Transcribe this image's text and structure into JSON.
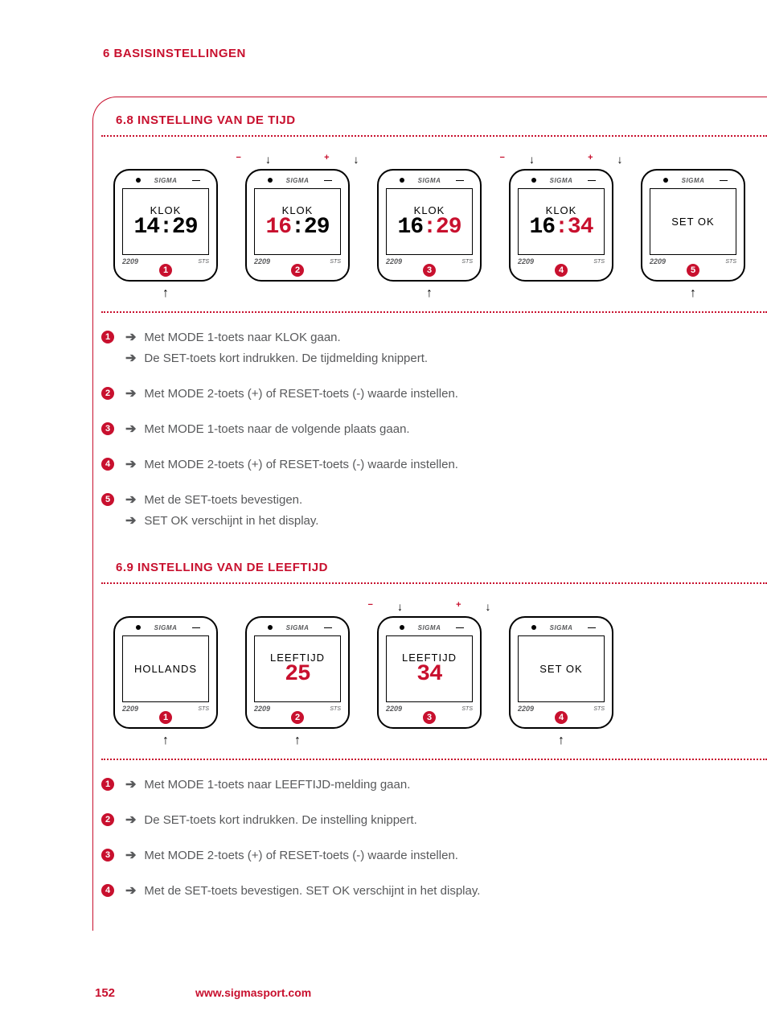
{
  "header": {
    "title": "6 BASISINSTELLINGEN"
  },
  "section_68": {
    "title": "6.8 INSTELLING VAN DE TIJD",
    "devices": [
      {
        "badge": "1",
        "top_indicators": false,
        "bottom_arrow": true,
        "brand": "SIGMA",
        "model": "2209",
        "sts": "STS",
        "screen_label": "KLOK",
        "segments": [
          {
            "text": "14",
            "color": "black"
          },
          {
            "text": ":",
            "color": "black"
          },
          {
            "text": "29",
            "color": "black"
          }
        ],
        "blink_hours": true
      },
      {
        "badge": "2",
        "top_indicators": true,
        "bottom_arrow": false,
        "brand": "SIGMA",
        "model": "2209",
        "sts": "STS",
        "screen_label": "KLOK",
        "segments": [
          {
            "text": "16",
            "color": "red"
          },
          {
            "text": ":",
            "color": "black"
          },
          {
            "text": "29",
            "color": "black"
          }
        ]
      },
      {
        "badge": "3",
        "top_indicators": false,
        "bottom_arrow": true,
        "brand": "SIGMA",
        "model": "2209",
        "sts": "STS",
        "screen_label": "KLOK",
        "segments": [
          {
            "text": "16",
            "color": "black"
          },
          {
            "text": ":",
            "color": "red"
          },
          {
            "text": "29",
            "color": "red"
          }
        ]
      },
      {
        "badge": "4",
        "top_indicators": true,
        "bottom_arrow": false,
        "brand": "SIGMA",
        "model": "2209",
        "sts": "STS",
        "screen_label": "KLOK",
        "segments": [
          {
            "text": "16",
            "color": "black"
          },
          {
            "text": ":",
            "color": "red"
          },
          {
            "text": "34",
            "color": "red"
          }
        ]
      },
      {
        "badge": "5",
        "top_indicators": false,
        "bottom_arrow": true,
        "brand": "SIGMA",
        "model": "2209",
        "sts": "STS",
        "screen_label": "SET OK",
        "segments": []
      }
    ],
    "steps": [
      {
        "n": "1",
        "lines": [
          "Met MODE 1-toets naar KLOK gaan.",
          "De SET-toets kort indrukken. De tijdmelding knippert."
        ]
      },
      {
        "n": "2",
        "lines": [
          "Met MODE 2-toets (+) of RESET-toets (-) waarde instellen."
        ]
      },
      {
        "n": "3",
        "lines": [
          "Met MODE 1-toets naar de volgende plaats gaan."
        ]
      },
      {
        "n": "4",
        "lines": [
          "Met MODE 2-toets (+) of RESET-toets (-) waarde instellen."
        ]
      },
      {
        "n": "5",
        "lines": [
          "Met de SET-toets bevestigen.",
          "SET OK verschijnt in het display."
        ]
      }
    ]
  },
  "section_69": {
    "title": "6.9 INSTELLING VAN DE LEEFTIJD",
    "devices": [
      {
        "badge": "1",
        "top_indicators": false,
        "bottom_arrow": true,
        "brand": "SIGMA",
        "model": "2209",
        "sts": "STS",
        "screen_label": "HOLLANDS",
        "segments": []
      },
      {
        "badge": "2",
        "top_indicators": false,
        "bottom_arrow": true,
        "brand": "SIGMA",
        "model": "2209",
        "sts": "STS",
        "screen_label": "LEEFTIJD",
        "segments": [
          {
            "text": "25",
            "color": "red"
          }
        ],
        "blink_value": true
      },
      {
        "badge": "3",
        "top_indicators": true,
        "bottom_arrow": false,
        "brand": "SIGMA",
        "model": "2209",
        "sts": "STS",
        "screen_label": "LEEFTIJD",
        "segments": [
          {
            "text": "34",
            "color": "red"
          }
        ]
      },
      {
        "badge": "4",
        "top_indicators": false,
        "bottom_arrow": true,
        "brand": "SIGMA",
        "model": "2209",
        "sts": "STS",
        "screen_label": "SET OK",
        "segments": []
      }
    ],
    "steps": [
      {
        "n": "1",
        "lines": [
          "Met MODE 1-toets naar LEEFTIJD-melding gaan."
        ]
      },
      {
        "n": "2",
        "lines": [
          "De SET-toets kort indrukken. De instelling knippert."
        ]
      },
      {
        "n": "3",
        "lines": [
          "Met MODE 2-toets (+) of RESET-toets (-) waarde instellen."
        ]
      },
      {
        "n": "4",
        "lines": [
          "Met de SET-toets bevestigen. SET OK verschijnt in het display."
        ]
      }
    ]
  },
  "indicators": {
    "minus": "−",
    "plus": "+",
    "down": "↓",
    "up": "↑"
  },
  "step_arrow": "➔",
  "footer": {
    "page": "152",
    "url": "www.sigmasport.com"
  },
  "colors": {
    "accent": "#c8102e",
    "text": "#58595b",
    "black": "#000000"
  }
}
